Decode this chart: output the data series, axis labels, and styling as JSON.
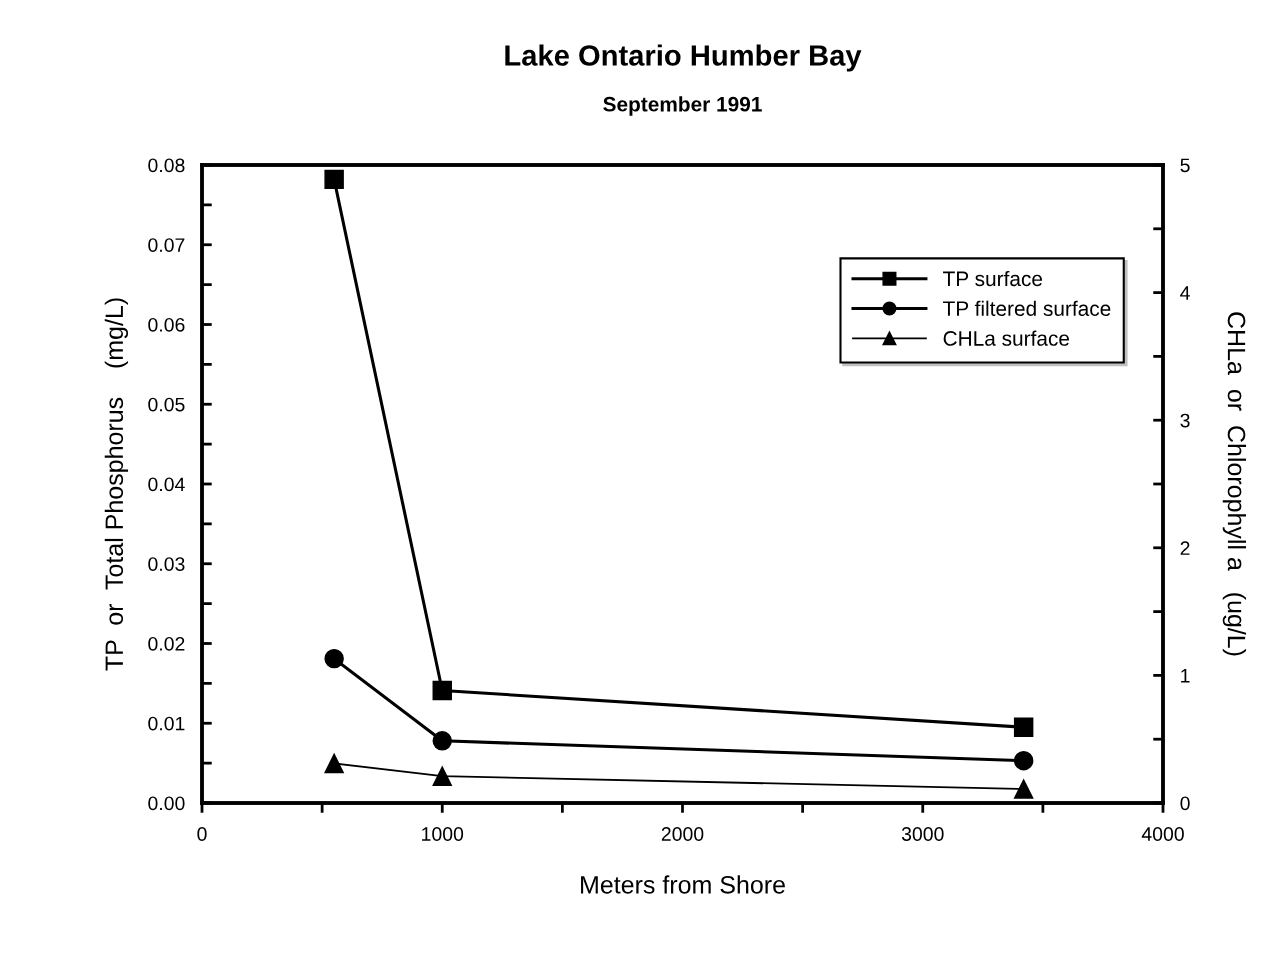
{
  "chart_data": {
    "type": "line",
    "title": "Lake Ontario Humber Bay",
    "subtitle": "September 1991",
    "xlabel": "Meters from Shore",
    "ylabel": "TP  or  Total Phosphorus    (mg/L)",
    "y2label": "CHLa  or  Chlorophyll a   (ug/L)",
    "x": [
      550,
      1000,
      3420
    ],
    "series": [
      {
        "name": "TP surface",
        "color": "#000000",
        "marker": "square",
        "values": [
          0.0782,
          0.0141,
          0.0095
        ]
      },
      {
        "name": "TP filtered surface",
        "color": "#000000",
        "marker": "circle",
        "values": [
          0.0181,
          0.0078,
          0.0053
        ]
      },
      {
        "name": "CHLa surface",
        "color": "#000000",
        "marker": "triangle",
        "axis": "y2",
        "values": [
          0.31,
          0.21,
          0.11
        ]
      }
    ],
    "xlim": [
      0,
      4000
    ],
    "xticks": [
      0,
      {
        "value": 500,
        "label": null
      },
      1000,
      {
        "value": 1500,
        "label": null
      },
      2000,
      {
        "value": 2500,
        "label": null
      },
      3000,
      {
        "value": 3500,
        "label": null
      },
      4000
    ],
    "ylim": [
      0,
      0.08
    ],
    "yticks": [
      {
        "value": 0,
        "label": "0.00"
      },
      {
        "value": 0.005,
        "label": null
      },
      0.01,
      {
        "value": 0.015,
        "label": null
      },
      0.02,
      {
        "value": 0.025,
        "label": null
      },
      0.03,
      {
        "value": 0.035,
        "label": null
      },
      0.04,
      {
        "value": 0.045,
        "label": null
      },
      0.05,
      {
        "value": 0.055,
        "label": null
      },
      0.06,
      {
        "value": 0.065,
        "label": null
      },
      0.07,
      {
        "value": 0.075,
        "label": null
      },
      0.08
    ],
    "y2lim": [
      0,
      5
    ],
    "y2ticks": [
      0,
      {
        "value": 0.5,
        "label": null
      },
      1,
      {
        "value": 1.5,
        "label": null
      },
      2,
      {
        "value": 2.5,
        "label": null
      },
      3,
      {
        "value": 3.5,
        "label": null
      },
      4,
      {
        "value": 4.5,
        "label": null
      },
      5
    ],
    "legend": "top right",
    "grid": false,
    "line_style": "solid"
  }
}
